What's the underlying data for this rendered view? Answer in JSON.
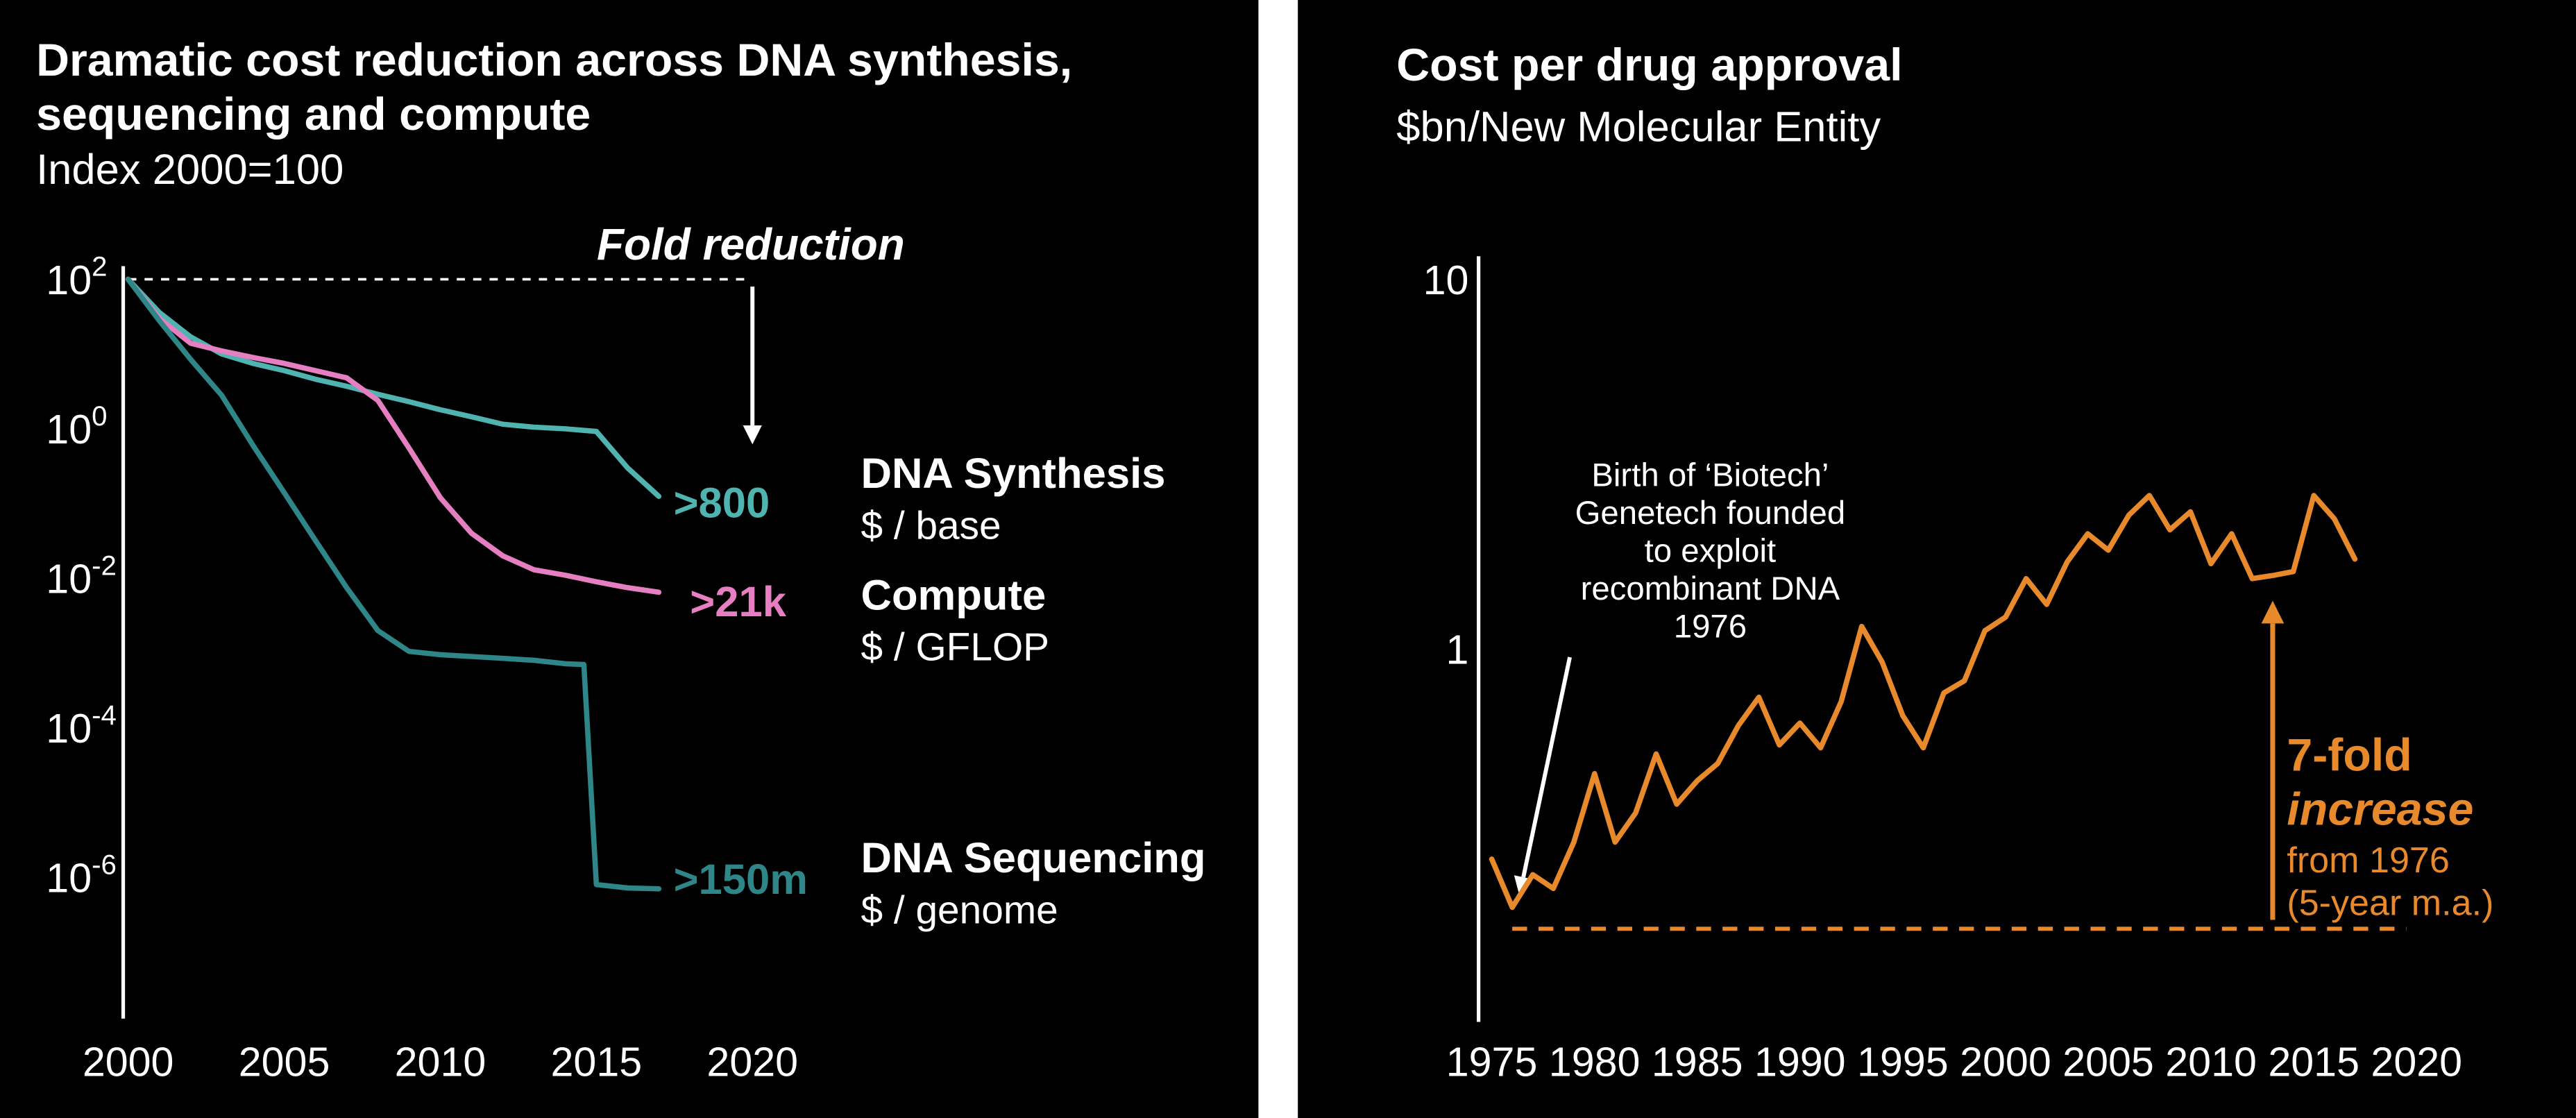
{
  "colors": {
    "white": "#ffffff",
    "synthesis": "#4fb3b0",
    "compute": "#e57fc2",
    "sequencing": "#2e8688",
    "orange": "#e88a2b"
  },
  "chart_data": [
    {
      "type": "line",
      "yscale": "log",
      "grid": false,
      "legend_position": "right",
      "title_lines": [
        "Dramatic cost reduction across DNA synthesis,",
        "sequencing and compute"
      ],
      "subtitle": "Index 2000=100",
      "annotation": {
        "label": "Fold reduction"
      },
      "xlim": [
        2000,
        2020
      ],
      "ylim": [
        1e-08,
        100
      ],
      "xticks": [
        2000,
        2005,
        2010,
        2015,
        2020
      ],
      "yticks": [
        {
          "base": "10",
          "sup": "2",
          "value": 100
        },
        {
          "base": "10",
          "sup": "0",
          "value": 1
        },
        {
          "base": "10",
          "sup": "-2",
          "value": 0.01
        },
        {
          "base": "10",
          "sup": "-4",
          "value": 0.0001
        },
        {
          "base": "10",
          "sup": "-6",
          "value": 1e-06
        }
      ],
      "series": [
        {
          "name": "DNA Synthesis",
          "unit": "$ / base",
          "fold_reduction": ">800",
          "color_key": "synthesis",
          "points": [
            [
              2000,
              100
            ],
            [
              2001,
              36
            ],
            [
              2002,
              17
            ],
            [
              2003,
              10
            ],
            [
              2004,
              7.5
            ],
            [
              2005,
              6
            ],
            [
              2006,
              4.6
            ],
            [
              2007,
              3.7
            ],
            [
              2008,
              2.9
            ],
            [
              2009,
              2.3
            ],
            [
              2010,
              1.8
            ],
            [
              2011,
              1.45
            ],
            [
              2012,
              1.15
            ],
            [
              2013,
              1.05
            ],
            [
              2014,
              1.0
            ],
            [
              2015,
              0.92
            ],
            [
              2016,
              0.3
            ],
            [
              2017,
              0.125
            ]
          ]
        },
        {
          "name": "Compute",
          "unit": "$ / GFLOP",
          "fold_reduction": ">21k",
          "color_key": "compute",
          "points": [
            [
              2000,
              100
            ],
            [
              2001,
              30
            ],
            [
              2002,
              14
            ],
            [
              2003,
              11
            ],
            [
              2004,
              9
            ],
            [
              2005,
              7.5
            ],
            [
              2006,
              6
            ],
            [
              2007,
              4.8
            ],
            [
              2008,
              2.4
            ],
            [
              2009,
              0.55
            ],
            [
              2010,
              0.12
            ],
            [
              2011,
              0.04
            ],
            [
              2012,
              0.02
            ],
            [
              2013,
              0.013
            ],
            [
              2014,
              0.011
            ],
            [
              2015,
              0.009
            ],
            [
              2016,
              0.0075
            ],
            [
              2017,
              0.0065
            ]
          ]
        },
        {
          "name": "DNA Sequencing",
          "unit": "$ / genome",
          "fold_reduction": ">150m",
          "color_key": "sequencing",
          "points": [
            [
              2000,
              100
            ],
            [
              2001,
              28
            ],
            [
              2002,
              8.5
            ],
            [
              2003,
              2.8
            ],
            [
              2004,
              0.6
            ],
            [
              2005,
              0.14
            ],
            [
              2006,
              0.032
            ],
            [
              2007,
              0.0075
            ],
            [
              2008,
              0.002
            ],
            [
              2009,
              0.00105
            ],
            [
              2010,
              0.00095
            ],
            [
              2011,
              0.0009
            ],
            [
              2012,
              0.00085
            ],
            [
              2013,
              0.0008
            ],
            [
              2014,
              0.00072
            ],
            [
              2014.6,
              0.0007
            ],
            [
              2015,
              8e-07
            ],
            [
              2016,
              7.2e-07
            ],
            [
              2017,
              7e-07
            ]
          ]
        }
      ],
      "guides": [
        {
          "type": "dashed-hline",
          "value": 100,
          "x": [
            2000,
            2020
          ],
          "color": "white",
          "width": 1.5,
          "dash": "5 5"
        },
        {
          "type": "arrow",
          "from": [
            2020,
            80
          ],
          "to": [
            2020,
            0.62
          ],
          "color": "white",
          "width": 2.5
        }
      ]
    },
    {
      "type": "line",
      "yscale": "log",
      "grid": false,
      "title": "Cost per drug approval",
      "subtitle": "$bn/New Molecular Entity",
      "xlim": [
        1975,
        2020
      ],
      "ylim": [
        0.1,
        10
      ],
      "xticks": [
        1975,
        1980,
        1985,
        1990,
        1995,
        2000,
        2005,
        2010,
        2015,
        2020
      ],
      "yticks": [
        {
          "base": "10",
          "value": 10
        },
        {
          "base": "1",
          "value": 1
        }
      ],
      "series": [
        {
          "name": "Cost per drug approval (5-year m.a.)",
          "unit": "$bn/New Molecular Entity",
          "color_key": "orange",
          "points": [
            [
              1975,
              0.27
            ],
            [
              1976,
              0.2
            ],
            [
              1977,
              0.245
            ],
            [
              1978,
              0.225
            ],
            [
              1979,
              0.3
            ],
            [
              1980,
              0.46
            ],
            [
              1981,
              0.3
            ],
            [
              1982,
              0.36
            ],
            [
              1983,
              0.52
            ],
            [
              1984,
              0.38
            ],
            [
              1985,
              0.44
            ],
            [
              1986,
              0.49
            ],
            [
              1987,
              0.62
            ],
            [
              1988,
              0.74
            ],
            [
              1989,
              0.55
            ],
            [
              1990,
              0.63
            ],
            [
              1991,
              0.54
            ],
            [
              1992,
              0.72
            ],
            [
              1993,
              1.15
            ],
            [
              1994,
              0.92
            ],
            [
              1995,
              0.66
            ],
            [
              1996,
              0.54
            ],
            [
              1997,
              0.76
            ],
            [
              1998,
              0.82
            ],
            [
              1999,
              1.12
            ],
            [
              2000,
              1.22
            ],
            [
              2001,
              1.55
            ],
            [
              2002,
              1.32
            ],
            [
              2003,
              1.72
            ],
            [
              2004,
              2.05
            ],
            [
              2005,
              1.85
            ],
            [
              2006,
              2.3
            ],
            [
              2007,
              2.6
            ],
            [
              2008,
              2.1
            ],
            [
              2009,
              2.35
            ],
            [
              2010,
              1.7
            ],
            [
              2011,
              2.05
            ],
            [
              2012,
              1.55
            ],
            [
              2013,
              1.58
            ],
            [
              2014,
              1.62
            ],
            [
              2015,
              2.6
            ],
            [
              2016,
              2.25
            ],
            [
              2017,
              1.75
            ]
          ]
        }
      ],
      "annotations": {
        "biotech": {
          "lines": [
            "Birth of ‘Biotech’",
            "Genetech founded",
            "to exploit",
            "recombinant DNA",
            "1976"
          ]
        },
        "increase": {
          "line1": "7-fold",
          "line2": "increase",
          "line3": "from 1976",
          "line4": "(5-year m.a.)"
        }
      },
      "guides": [
        {
          "type": "dashed-hline",
          "value": 0.175,
          "x": [
            1976,
            2019.5
          ],
          "color": "orange",
          "width": 2.5,
          "dash": "9 7"
        },
        {
          "type": "arrow",
          "from": [
            2013,
            0.185
          ],
          "to": [
            2013,
            1.35
          ],
          "color": "orange",
          "width": 3
        },
        {
          "type": "arrow",
          "from": [
            1978.8,
            0.95
          ],
          "to": [
            1976.35,
            0.215
          ],
          "color": "white",
          "width": 2.5
        }
      ]
    }
  ]
}
